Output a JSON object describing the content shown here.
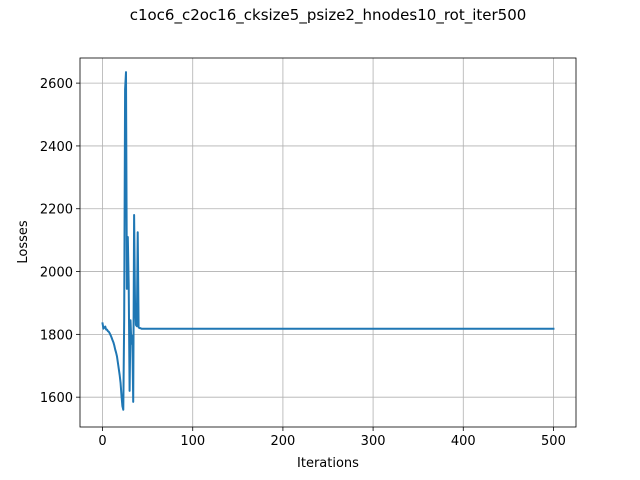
{
  "chart_data": {
    "type": "line",
    "title": "c1oc6_c2oc16_cksize5_psize2_hnodes10_rot_iter500",
    "xlabel": "Iterations",
    "ylabel": "Losses",
    "xlim": [
      -25,
      525
    ],
    "ylim": [
      1505,
      2680
    ],
    "xticks": [
      0,
      100,
      200,
      300,
      400,
      500
    ],
    "yticks": [
      1600,
      1800,
      2000,
      2200,
      2400,
      2600
    ],
    "xtick_labels": [
      "0",
      "100",
      "200",
      "300",
      "400",
      "500"
    ],
    "ytick_labels": [
      "1600",
      "1800",
      "2000",
      "2200",
      "2400",
      "2600"
    ],
    "grid": true,
    "series": [
      {
        "color": "#1f77b4",
        "x": [
          0,
          1,
          2,
          3,
          4,
          5,
          6,
          7,
          8,
          9,
          10,
          11,
          12,
          13,
          14,
          15,
          16,
          17,
          18,
          19,
          20,
          21,
          22,
          23,
          24,
          25,
          26,
          27,
          28,
          29,
          30,
          31,
          32,
          33,
          34,
          35,
          36,
          37,
          38,
          39,
          40,
          41,
          42,
          43,
          44,
          45,
          46,
          47,
          48,
          49,
          50,
          51,
          52,
          53,
          55,
          60,
          70,
          100,
          200,
          300,
          400,
          500
        ],
        "y": [
          1835,
          1818,
          1822,
          1825,
          1815,
          1815,
          1810,
          1808,
          1803,
          1797,
          1790,
          1782,
          1775,
          1765,
          1752,
          1742,
          1730,
          1710,
          1690,
          1670,
          1645,
          1605,
          1572,
          1560,
          1850,
          2580,
          2635,
          1945,
          2110,
          1960,
          1620,
          1845,
          1770,
          1795,
          1585,
          2180,
          1900,
          1830,
          1826,
          2125,
          1822,
          1820,
          1820,
          1818,
          1818,
          1818,
          1818,
          1818,
          1818,
          1818,
          1818,
          1818,
          1818,
          1818,
          1818,
          1818,
          1818,
          1818,
          1818,
          1818,
          1818,
          1818
        ]
      }
    ]
  }
}
